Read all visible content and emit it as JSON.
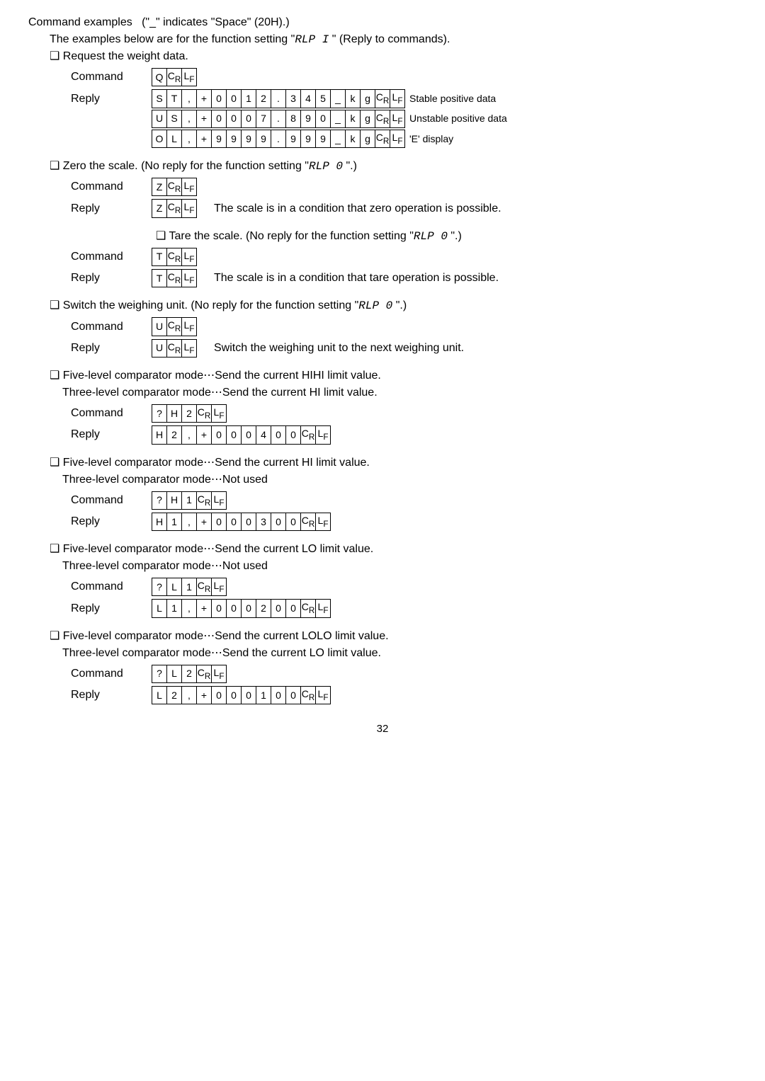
{
  "topText": "Command examples   (\"_\" indicates \"Space\" (20H).)",
  "topText2a": "The examples below are for the function setting \"",
  "topText2code": "RLP  I",
  "topText2b": " \" (Reply to commands).",
  "reqWeight": "Request the weight data.",
  "labels": {
    "command": "Command",
    "reply": "Reply"
  },
  "cmd1": [
    "Q",
    "Cₙ",
    "Lₗ"
  ],
  "reply1a": [
    "S",
    "T",
    ",",
    "+",
    "0",
    "0",
    "1",
    "2",
    ".",
    "3",
    "4",
    "5",
    "_",
    "k",
    "g",
    "Cₙ",
    "Lₗ"
  ],
  "reply1aTrail": "Stable positive data",
  "reply1b": [
    "U",
    "S",
    ",",
    "+",
    "0",
    "0",
    "0",
    "7",
    ".",
    "8",
    "9",
    "0",
    "_",
    "k",
    "g",
    "Cₙ",
    "Lₗ"
  ],
  "reply1bTrail": "Unstable positive data",
  "reply1c": [
    "O",
    "L",
    ",",
    "+",
    "9",
    "9",
    "9",
    "9",
    ".",
    "9",
    "9",
    "9",
    "_",
    "k",
    "g",
    "Cₙ",
    "Lₗ"
  ],
  "reply1cTrail": "'E' display",
  "zeroA": "Zero the scale. (No reply for the function setting \"",
  "zeroCode": "RLP  0",
  "zeroB": " \".)",
  "cmd2": [
    "Z",
    "Cₙ",
    "Lₗ"
  ],
  "reply2": [
    "Z",
    "Cₙ",
    "Lₗ"
  ],
  "reply2Trail": "The scale is in a condition that zero operation is possible.",
  "tareA": "Tare the scale. (No reply for the function setting \"",
  "tareCode": "RLP  0",
  "tareB": " \".)",
  "cmd3": [
    "T",
    "Cₙ",
    "Lₗ"
  ],
  "reply3": [
    "T",
    "Cₙ",
    "Lₗ"
  ],
  "reply3Trail": "The scale is in a condition that tare operation is possible.",
  "switchA": "Switch the weighing unit. (No reply for the function setting \"",
  "switchCode": "RLP  0",
  "switchB": " \".)",
  "cmd4": [
    "U",
    "Cₙ",
    "Lₗ"
  ],
  "reply4": [
    "U",
    "Cₙ",
    "Lₗ"
  ],
  "reply4Trail": "Switch the weighing unit to the next weighing unit.",
  "five1a": "Five-level comparator mode⋯Send the current HIHI limit value.",
  "five1b": "Three-level comparator mode⋯Send the current HI limit value.",
  "cmd5": [
    "?",
    "H",
    "2",
    "Cₙ",
    "Lₗ"
  ],
  "reply5": [
    "H",
    "2",
    ",",
    "+",
    "0",
    "0",
    "0",
    "4",
    "0",
    "0",
    "Cₙ",
    "Lₗ"
  ],
  "five2a": "Five-level comparator mode⋯Send the current HI limit value.",
  "five2b": "Three-level comparator mode⋯Not used",
  "cmd6": [
    "?",
    "H",
    "1",
    "Cₙ",
    "Lₗ"
  ],
  "reply6": [
    "H",
    "1",
    ",",
    "+",
    "0",
    "0",
    "0",
    "3",
    "0",
    "0",
    "Cₙ",
    "Lₗ"
  ],
  "five3a": "Five-level comparator mode⋯Send the current LO limit value.",
  "five3b": "Three-level comparator mode⋯Not used",
  "cmd7": [
    "?",
    "L",
    "1",
    "Cₙ",
    "Lₗ"
  ],
  "reply7": [
    "L",
    "1",
    ",",
    "+",
    "0",
    "0",
    "0",
    "2",
    "0",
    "0",
    "Cₙ",
    "Lₗ"
  ],
  "five4a": "Five-level comparator mode⋯Send the current LOLO limit value.",
  "five4b": "Three-level comparator mode⋯Send the current LO limit value.",
  "cmd8": [
    "?",
    "L",
    "2",
    "Cₙ",
    "Lₗ"
  ],
  "reply8": [
    "L",
    "2",
    ",",
    "+",
    "0",
    "0",
    "0",
    "1",
    "0",
    "0",
    "Cₙ",
    "Lₗ"
  ],
  "pageNum": "32",
  "crlf": {
    "cr": "C",
    "crsub": "R",
    "lf": "L",
    "lfsub": "F"
  }
}
